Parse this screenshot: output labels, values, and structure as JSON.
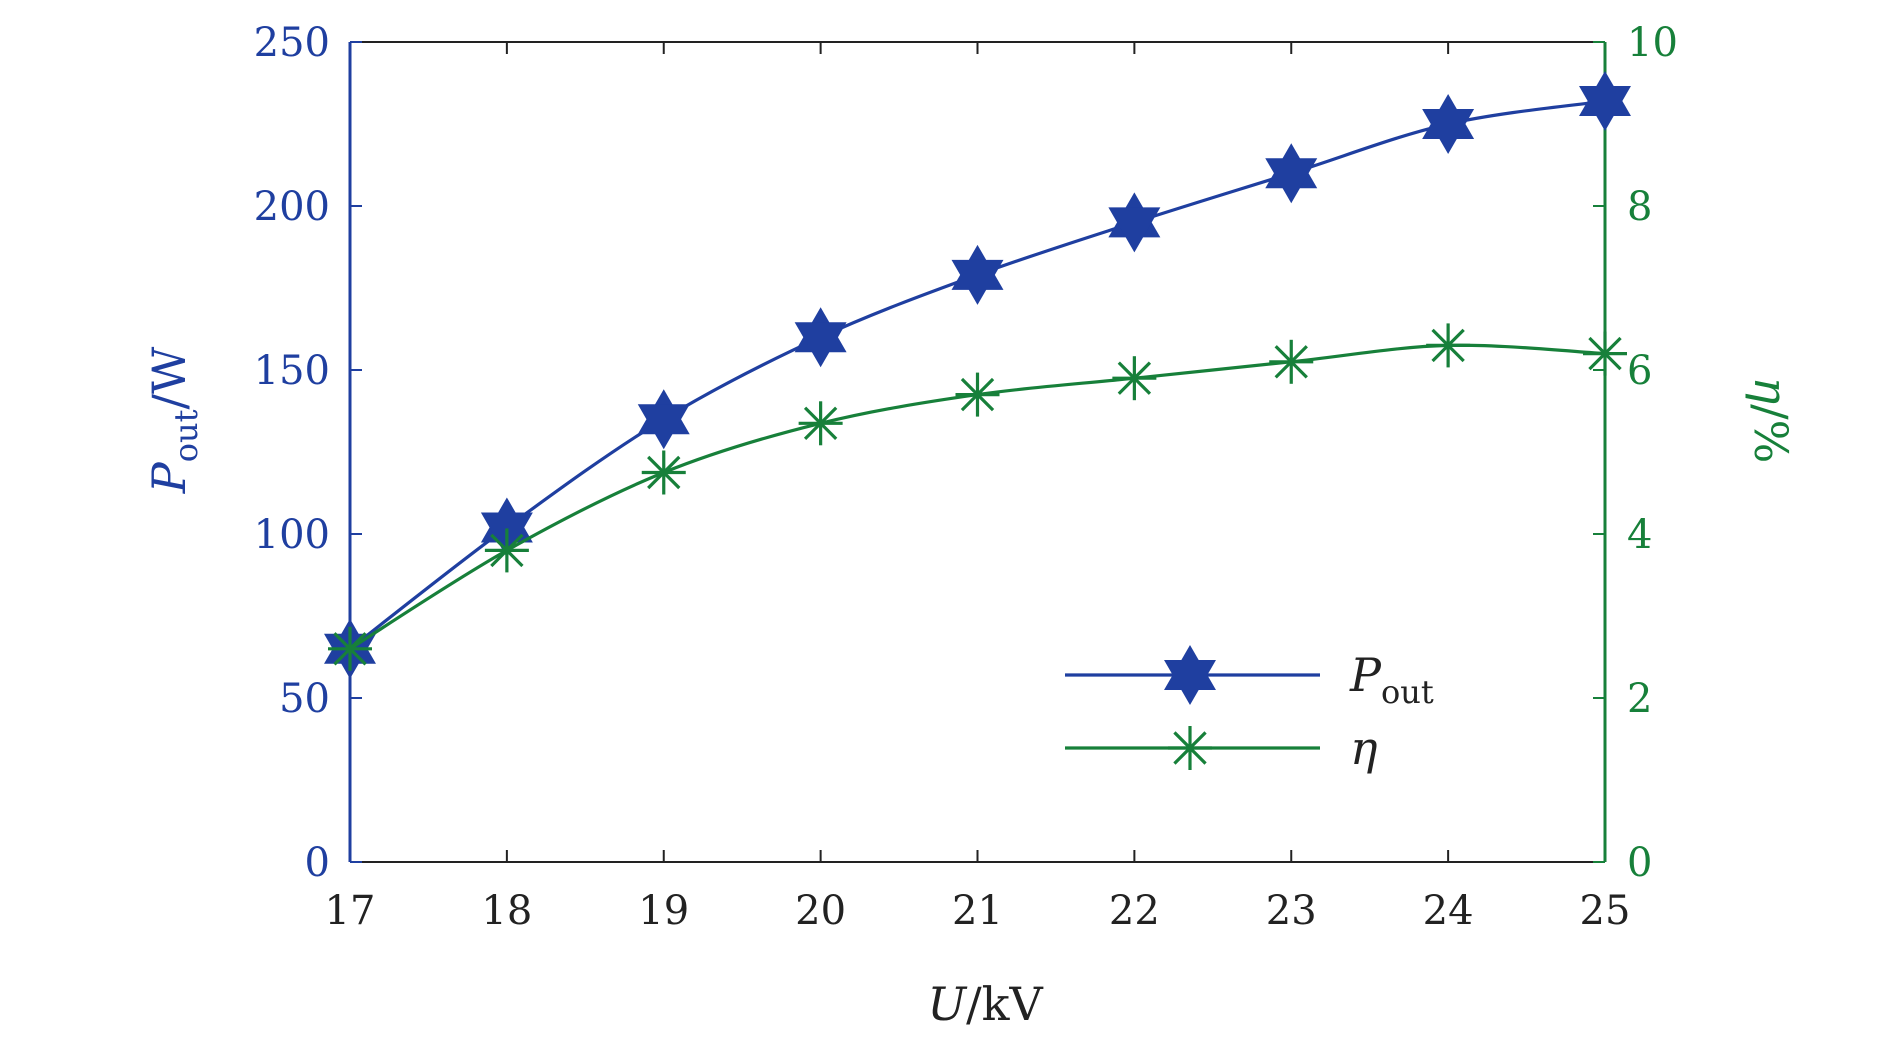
{
  "chart_data": {
    "type": "line",
    "x": [
      17,
      18,
      19,
      20,
      21,
      22,
      23,
      24,
      25
    ],
    "xlabel": "U/kV",
    "xlim": [
      17,
      25
    ],
    "xticks": [
      "17",
      "18",
      "19",
      "20",
      "21",
      "22",
      "23",
      "24",
      "25"
    ],
    "grid": false,
    "legend_position": "bottom-right",
    "axes": [
      {
        "side": "left",
        "label": "Pout/W",
        "label_main": "P",
        "label_sub": "out",
        "label_tail": "/W",
        "ylim": [
          0,
          250
        ],
        "ticks": [
          "0",
          "50",
          "100",
          "150",
          "200",
          "250"
        ],
        "color": "#1f3fa0"
      },
      {
        "side": "right",
        "label": "η/%",
        "ylim": [
          0,
          10
        ],
        "ticks": [
          "0",
          "2",
          "4",
          "6",
          "8",
          "10"
        ],
        "color": "#17803a"
      }
    ],
    "series": [
      {
        "name": "Pout",
        "name_main": "P",
        "name_sub": "out",
        "axis": "left",
        "marker": "hexagram",
        "color": "#1f3fa0",
        "values": [
          65,
          102,
          135,
          160,
          179,
          195,
          210,
          225,
          232
        ]
      },
      {
        "name": "η",
        "axis": "right",
        "marker": "asterisk",
        "color": "#17803a",
        "values": [
          2.6,
          3.8,
          4.75,
          5.35,
          5.7,
          5.9,
          6.1,
          6.3,
          6.2
        ]
      }
    ]
  }
}
